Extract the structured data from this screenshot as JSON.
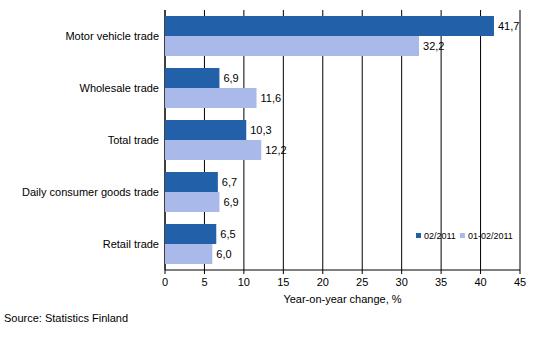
{
  "chart_data": {
    "type": "bar",
    "orientation": "horizontal",
    "categories": [
      "Motor vehicle trade",
      "Wholesale trade",
      "Total trade",
      "Daily consumer goods trade",
      "Retail trade"
    ],
    "series": [
      {
        "name": "02/2011",
        "color": "#2360aa",
        "values": [
          41.7,
          6.9,
          10.3,
          6.7,
          6.5
        ],
        "value_labels": [
          "41,7",
          "6,9",
          "10,3",
          "6,7",
          "6,5"
        ]
      },
      {
        "name": "01-02/2011",
        "color": "#a9b9e9",
        "values": [
          32.2,
          11.6,
          12.2,
          6.9,
          6.0
        ],
        "value_labels": [
          "32,2",
          "11,6",
          "12,2",
          "6,9",
          "6,0"
        ]
      }
    ],
    "xlabel": "Year-on-year change, %",
    "xlim": [
      0,
      45
    ],
    "xticks": [
      0,
      5,
      10,
      15,
      20,
      25,
      30,
      35,
      40,
      45
    ],
    "grid": true,
    "data_labels": true,
    "legend": "lower right",
    "annotations": [
      "Source: Statistics Finland"
    ]
  }
}
